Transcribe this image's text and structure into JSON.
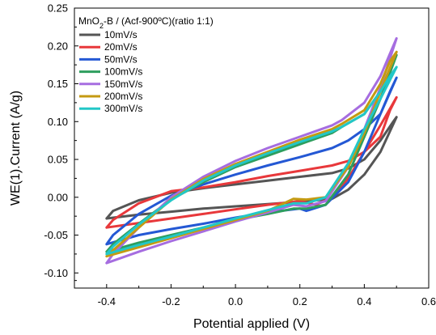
{
  "chart_data": {
    "type": "line",
    "title": "",
    "xlabel": "Potential applied (V)",
    "ylabel": "WE(1).Current (A/g)",
    "xlim": [
      -0.5,
      0.6
    ],
    "ylim": [
      -0.12,
      0.25
    ],
    "x_ticks": [
      "-0.4",
      "-0.2",
      "0.0",
      "0.2",
      "0.4",
      "0.6"
    ],
    "y_ticks": [
      "-0.10",
      "-0.05",
      "0.00",
      "0.05",
      "0.10",
      "0.15",
      "0.20",
      "0.25"
    ],
    "grid": false,
    "legend": {
      "placement": "top-left",
      "title_main": "MnO",
      "title_sub": "2",
      "title_rest": "-B / (Acf-900ºC)(ratio 1:1)"
    },
    "series": [
      {
        "name": "10mV/s",
        "color": "#555555",
        "points": [
          [
            -0.4,
            -0.028
          ],
          [
            -0.3,
            -0.023
          ],
          [
            -0.2,
            -0.019
          ],
          [
            -0.1,
            -0.015
          ],
          [
            0.0,
            -0.012
          ],
          [
            0.1,
            -0.009
          ],
          [
            0.2,
            -0.006
          ],
          [
            0.3,
            -0.002
          ],
          [
            0.35,
            0.01
          ],
          [
            0.4,
            0.03
          ],
          [
            0.45,
            0.06
          ],
          [
            0.5,
            0.106
          ],
          [
            0.49,
            0.1
          ],
          [
            0.45,
            0.075
          ],
          [
            0.4,
            0.05
          ],
          [
            0.35,
            0.038
          ],
          [
            0.3,
            0.032
          ],
          [
            0.2,
            0.027
          ],
          [
            0.1,
            0.022
          ],
          [
            0.0,
            0.017
          ],
          [
            -0.1,
            0.012
          ],
          [
            -0.2,
            0.006
          ],
          [
            -0.3,
            -0.004
          ],
          [
            -0.38,
            -0.018
          ],
          [
            -0.4,
            -0.028
          ]
        ]
      },
      {
        "name": "20mV/s",
        "color": "#e8383b",
        "points": [
          [
            -0.4,
            -0.04
          ],
          [
            -0.3,
            -0.034
          ],
          [
            -0.2,
            -0.028
          ],
          [
            -0.1,
            -0.022
          ],
          [
            0.0,
            -0.016
          ],
          [
            0.1,
            -0.01
          ],
          [
            0.2,
            -0.005
          ],
          [
            0.25,
            -0.01
          ],
          [
            0.3,
            0.0
          ],
          [
            0.35,
            0.025
          ],
          [
            0.4,
            0.06
          ],
          [
            0.45,
            0.095
          ],
          [
            0.5,
            0.132
          ],
          [
            0.48,
            0.115
          ],
          [
            0.45,
            0.08
          ],
          [
            0.4,
            0.06
          ],
          [
            0.35,
            0.048
          ],
          [
            0.3,
            0.042
          ],
          [
            0.2,
            0.035
          ],
          [
            0.1,
            0.028
          ],
          [
            0.0,
            0.02
          ],
          [
            -0.1,
            0.013
          ],
          [
            -0.2,
            0.008
          ],
          [
            -0.3,
            -0.008
          ],
          [
            -0.38,
            -0.03
          ],
          [
            -0.4,
            -0.04
          ]
        ]
      },
      {
        "name": "50mV/s",
        "color": "#2458d4",
        "points": [
          [
            -0.4,
            -0.062
          ],
          [
            -0.3,
            -0.05
          ],
          [
            -0.2,
            -0.042
          ],
          [
            -0.1,
            -0.035
          ],
          [
            0.0,
            -0.027
          ],
          [
            0.1,
            -0.02
          ],
          [
            0.2,
            -0.015
          ],
          [
            0.22,
            -0.018
          ],
          [
            0.28,
            -0.01
          ],
          [
            0.35,
            0.02
          ],
          [
            0.4,
            0.06
          ],
          [
            0.45,
            0.11
          ],
          [
            0.5,
            0.158
          ],
          [
            0.48,
            0.14
          ],
          [
            0.45,
            0.11
          ],
          [
            0.4,
            0.09
          ],
          [
            0.35,
            0.075
          ],
          [
            0.3,
            0.065
          ],
          [
            0.2,
            0.053
          ],
          [
            0.1,
            0.042
          ],
          [
            0.0,
            0.03
          ],
          [
            -0.1,
            0.017
          ],
          [
            -0.2,
            0.002
          ],
          [
            -0.3,
            -0.022
          ],
          [
            -0.38,
            -0.05
          ],
          [
            -0.4,
            -0.062
          ]
        ]
      },
      {
        "name": "100mV/s",
        "color": "#2e9e5e",
        "points": [
          [
            -0.4,
            -0.072
          ],
          [
            -0.3,
            -0.06
          ],
          [
            -0.2,
            -0.05
          ],
          [
            -0.1,
            -0.04
          ],
          [
            0.0,
            -0.03
          ],
          [
            0.1,
            -0.022
          ],
          [
            0.18,
            -0.015
          ],
          [
            0.22,
            -0.015
          ],
          [
            0.28,
            -0.01
          ],
          [
            0.35,
            0.03
          ],
          [
            0.4,
            0.08
          ],
          [
            0.45,
            0.13
          ],
          [
            0.5,
            0.188
          ],
          [
            0.48,
            0.17
          ],
          [
            0.45,
            0.14
          ],
          [
            0.4,
            0.11
          ],
          [
            0.33,
            0.093
          ],
          [
            0.3,
            0.085
          ],
          [
            0.2,
            0.07
          ],
          [
            0.1,
            0.055
          ],
          [
            0.0,
            0.04
          ],
          [
            -0.1,
            0.02
          ],
          [
            -0.2,
            -0.003
          ],
          [
            -0.3,
            -0.035
          ],
          [
            -0.38,
            -0.062
          ],
          [
            -0.4,
            -0.072
          ]
        ]
      },
      {
        "name": "150mV/s",
        "color": "#a66de0",
        "points": [
          [
            -0.4,
            -0.087
          ],
          [
            -0.3,
            -0.072
          ],
          [
            -0.2,
            -0.058
          ],
          [
            -0.1,
            -0.045
          ],
          [
            0.0,
            -0.032
          ],
          [
            0.1,
            -0.02
          ],
          [
            0.18,
            -0.01
          ],
          [
            0.22,
            -0.012
          ],
          [
            0.28,
            -0.005
          ],
          [
            0.35,
            0.04
          ],
          [
            0.4,
            0.09
          ],
          [
            0.45,
            0.145
          ],
          [
            0.5,
            0.21
          ],
          [
            0.48,
            0.19
          ],
          [
            0.45,
            0.16
          ],
          [
            0.4,
            0.125
          ],
          [
            0.33,
            0.102
          ],
          [
            0.3,
            0.095
          ],
          [
            0.2,
            0.08
          ],
          [
            0.1,
            0.065
          ],
          [
            0.0,
            0.048
          ],
          [
            -0.1,
            0.027
          ],
          [
            -0.2,
            0.0
          ],
          [
            -0.3,
            -0.04
          ],
          [
            -0.38,
            -0.075
          ],
          [
            -0.4,
            -0.087
          ]
        ]
      },
      {
        "name": "200mV/s",
        "color": "#c49a12",
        "points": [
          [
            -0.4,
            -0.078
          ],
          [
            -0.3,
            -0.066
          ],
          [
            -0.2,
            -0.054
          ],
          [
            -0.1,
            -0.042
          ],
          [
            0.0,
            -0.03
          ],
          [
            0.1,
            -0.018
          ],
          [
            0.18,
            -0.002
          ],
          [
            0.22,
            -0.003
          ],
          [
            0.28,
            0.0
          ],
          [
            0.35,
            0.04
          ],
          [
            0.4,
            0.085
          ],
          [
            0.45,
            0.14
          ],
          [
            0.5,
            0.192
          ],
          [
            0.48,
            0.18
          ],
          [
            0.45,
            0.15
          ],
          [
            0.4,
            0.115
          ],
          [
            0.33,
            0.097
          ],
          [
            0.3,
            0.09
          ],
          [
            0.2,
            0.076
          ],
          [
            0.1,
            0.06
          ],
          [
            0.0,
            0.044
          ],
          [
            -0.1,
            0.024
          ],
          [
            -0.2,
            -0.003
          ],
          [
            -0.3,
            -0.04
          ],
          [
            -0.38,
            -0.07
          ],
          [
            -0.4,
            -0.078
          ]
        ]
      },
      {
        "name": "300mV/s",
        "color": "#22c7c7",
        "points": [
          [
            -0.4,
            -0.075
          ],
          [
            -0.3,
            -0.063
          ],
          [
            -0.2,
            -0.052
          ],
          [
            -0.1,
            -0.04
          ],
          [
            0.0,
            -0.028
          ],
          [
            0.1,
            -0.017
          ],
          [
            0.18,
            -0.008
          ],
          [
            0.22,
            -0.008
          ],
          [
            0.28,
            0.0
          ],
          [
            0.35,
            0.045
          ],
          [
            0.4,
            0.09
          ],
          [
            0.45,
            0.13
          ],
          [
            0.5,
            0.172
          ],
          [
            0.48,
            0.16
          ],
          [
            0.45,
            0.14
          ],
          [
            0.4,
            0.11
          ],
          [
            0.33,
            0.093
          ],
          [
            0.3,
            0.087
          ],
          [
            0.2,
            0.073
          ],
          [
            0.1,
            0.058
          ],
          [
            0.0,
            0.042
          ],
          [
            -0.1,
            0.022
          ],
          [
            -0.2,
            -0.004
          ],
          [
            -0.3,
            -0.036
          ],
          [
            -0.38,
            -0.065
          ],
          [
            -0.4,
            -0.075
          ]
        ]
      }
    ]
  }
}
